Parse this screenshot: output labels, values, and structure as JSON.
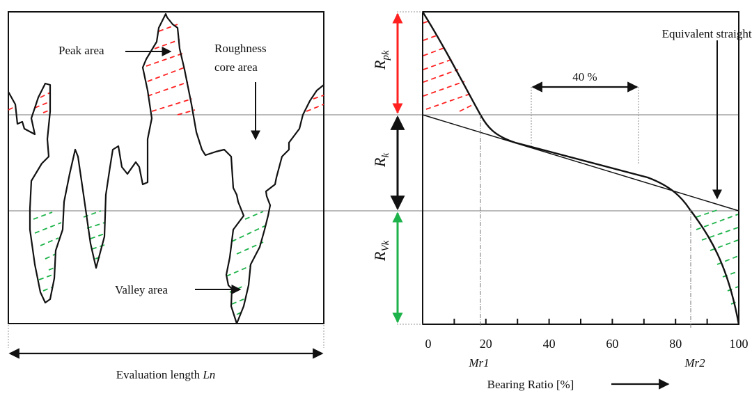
{
  "left_panel": {
    "peak_label": "Peak area",
    "core_label_line1": "Roughness",
    "core_label_line2": "core area",
    "valley_label": "Valley area",
    "evaluation_label": "Evaluation length ",
    "evaluation_symbol": "Ln"
  },
  "right_panel": {
    "equivalent_line_label": "Equivalent straight line",
    "percent_label": "40 %",
    "rpk_label": "R",
    "rpk_sub": "pk",
    "rk_label": "R",
    "rk_sub": "k",
    "rvk_label": "R",
    "rvk_sub": "Vk",
    "mr1_label": "Mr1",
    "mr2_label": "Mr2",
    "x_axis_label": "Bearing Ratio [%]",
    "x_ticks": [
      "0",
      "20",
      "40",
      "60",
      "80",
      "100"
    ]
  },
  "colors": {
    "peak": "#ff2020",
    "valley": "#1db34a",
    "line": "#111111"
  }
}
